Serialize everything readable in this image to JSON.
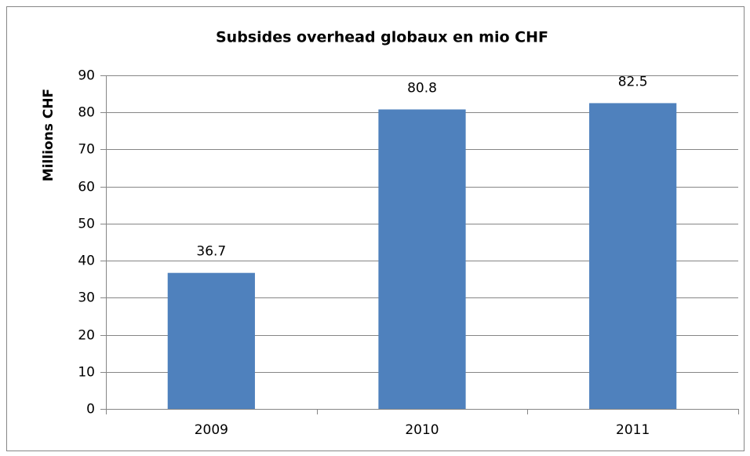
{
  "chart_data": {
    "type": "bar",
    "title": "Subsides overhead globaux en mio CHF",
    "y_label": "Millions CHF",
    "categories": [
      "2009",
      "2010",
      "2011"
    ],
    "values": [
      36.7,
      80.8,
      82.5
    ],
    "color": "#4f81bd",
    "ylim": [
      0,
      90
    ],
    "yticks": [
      0,
      10,
      20,
      30,
      40,
      50,
      60,
      70,
      80,
      90
    ],
    "grid": true
  }
}
